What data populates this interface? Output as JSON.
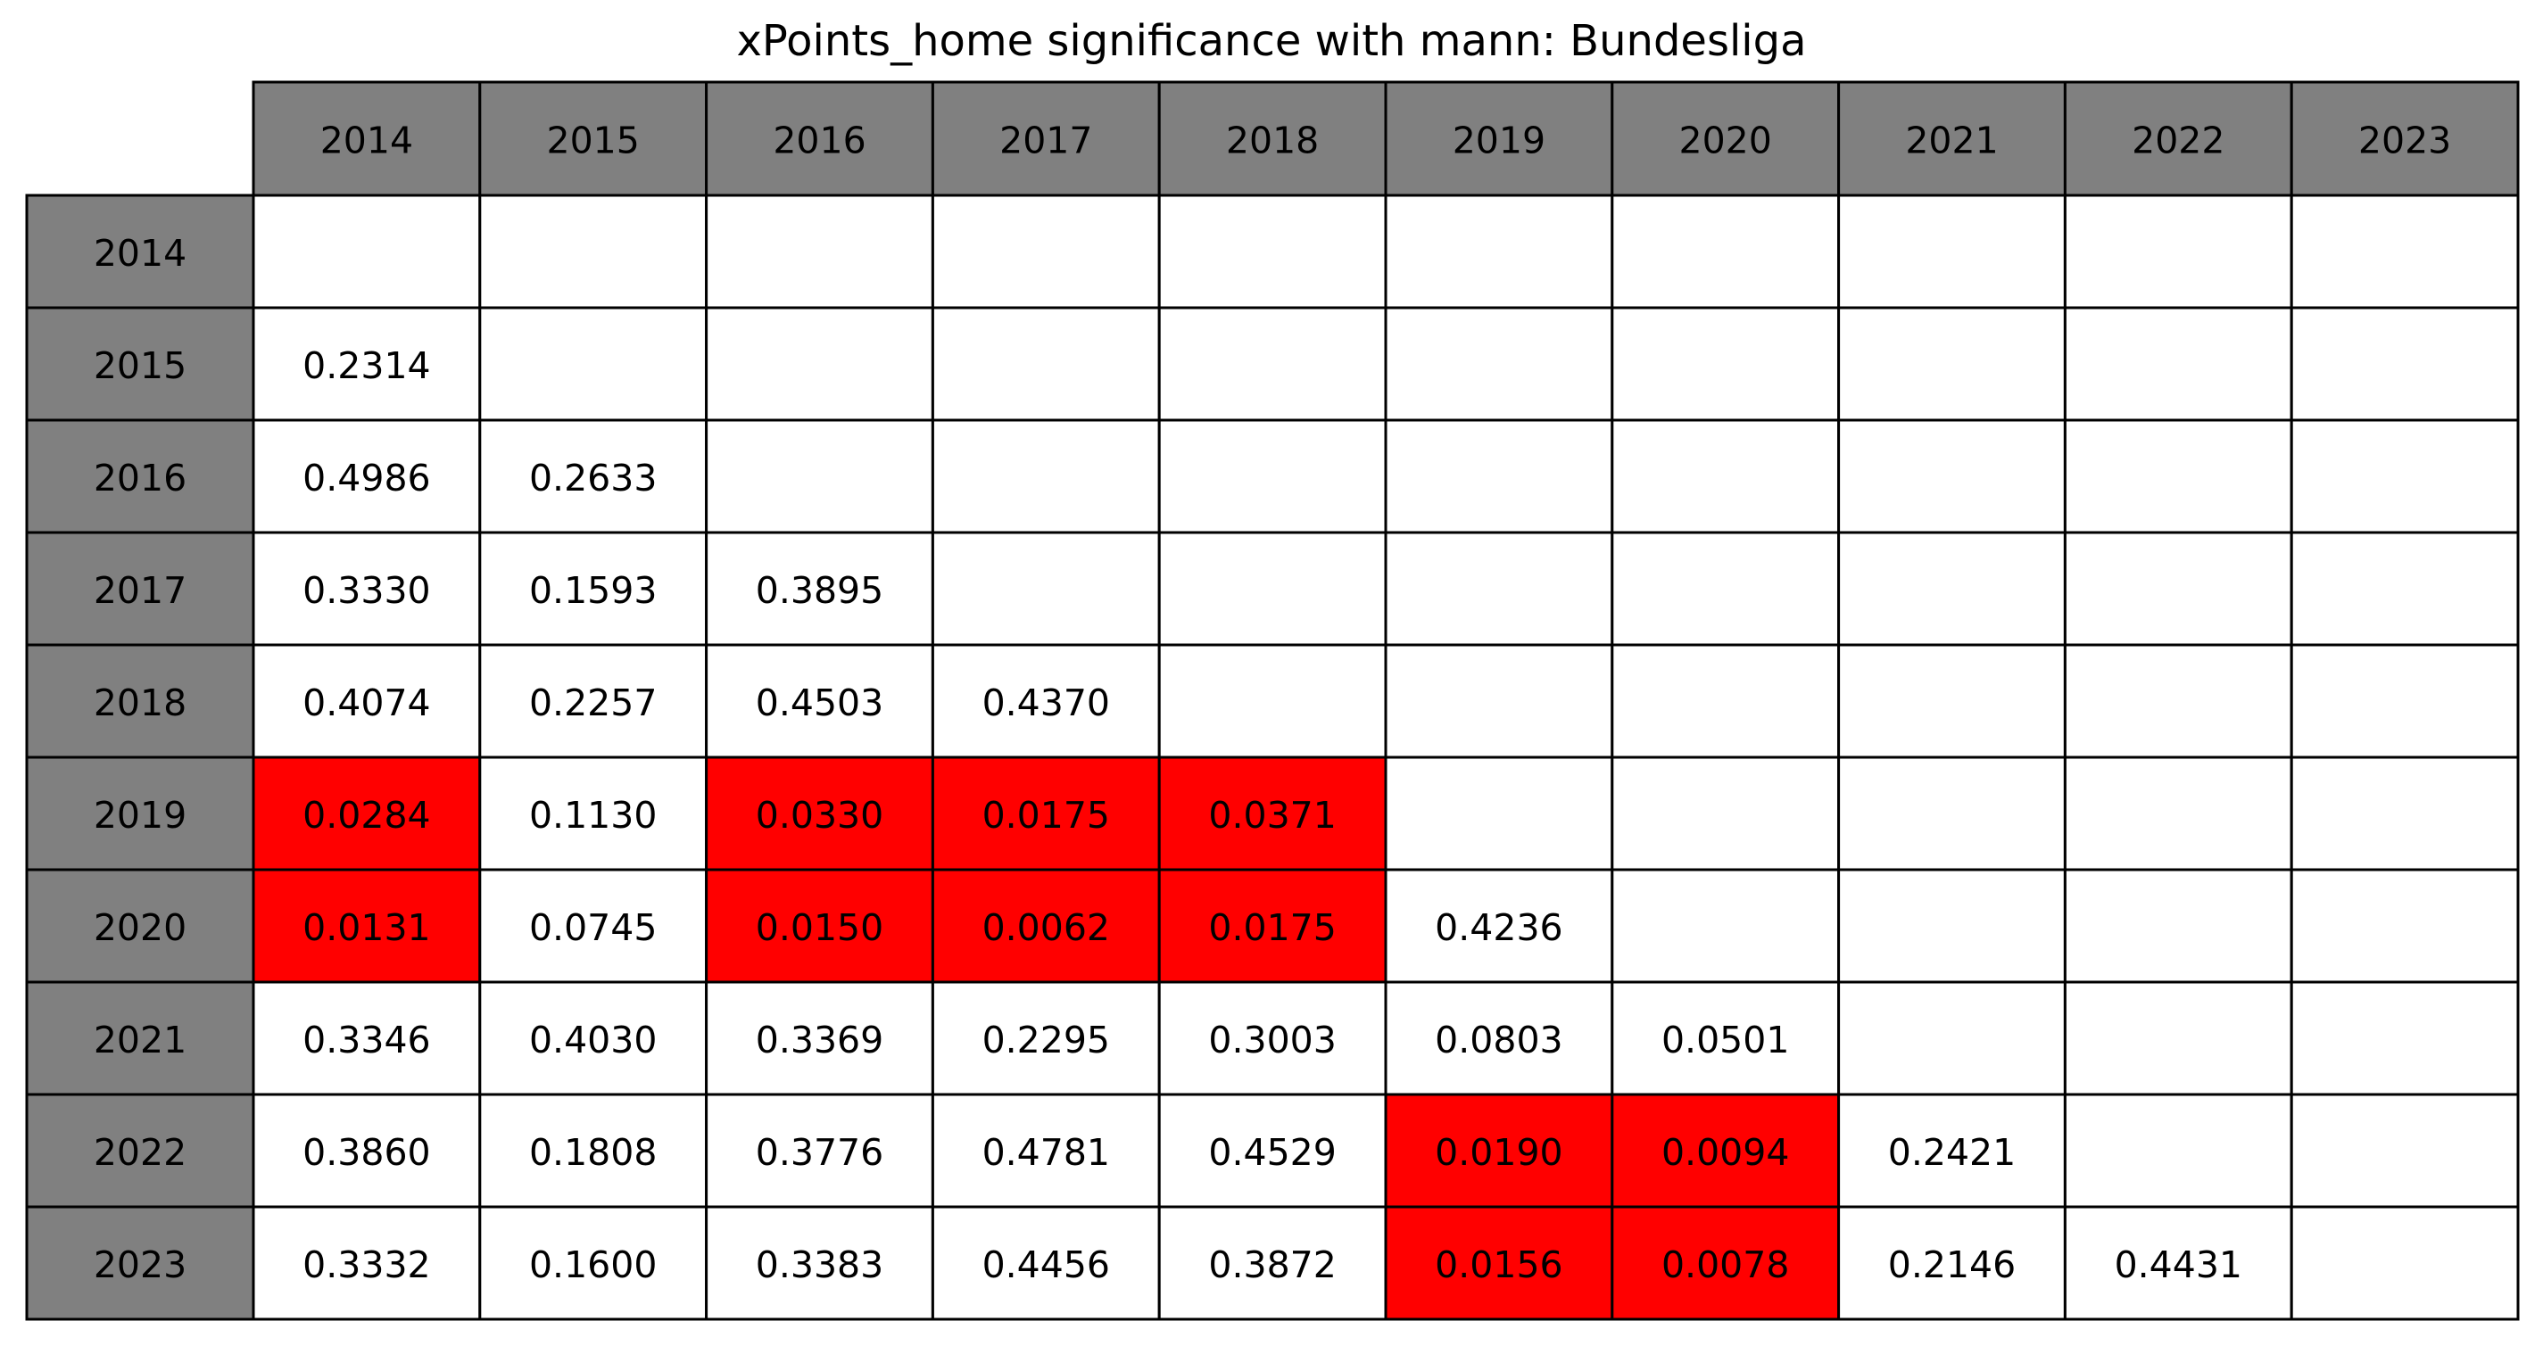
{
  "chart_data": {
    "type": "table",
    "title": "xPoints_home significance with mann: Bundesliga",
    "column_labels": [
      "2014",
      "2015",
      "2016",
      "2017",
      "2018",
      "2019",
      "2020",
      "2021",
      "2022",
      "2023"
    ],
    "row_labels": [
      "2014",
      "2015",
      "2016",
      "2017",
      "2018",
      "2019",
      "2020",
      "2021",
      "2022",
      "2023"
    ],
    "cells": [
      [
        "",
        "",
        "",
        "",
        "",
        "",
        "",
        "",
        "",
        ""
      ],
      [
        "0.2314",
        "",
        "",
        "",
        "",
        "",
        "",
        "",
        "",
        ""
      ],
      [
        "0.4986",
        "0.2633",
        "",
        "",
        "",
        "",
        "",
        "",
        "",
        ""
      ],
      [
        "0.3330",
        "0.1593",
        "0.3895",
        "",
        "",
        "",
        "",
        "",
        "",
        ""
      ],
      [
        "0.4074",
        "0.2257",
        "0.4503",
        "0.4370",
        "",
        "",
        "",
        "",
        "",
        ""
      ],
      [
        "0.0284",
        "0.1130",
        "0.0330",
        "0.0175",
        "0.0371",
        "",
        "",
        "",
        "",
        ""
      ],
      [
        "0.0131",
        "0.0745",
        "0.0150",
        "0.0062",
        "0.0175",
        "0.4236",
        "",
        "",
        "",
        ""
      ],
      [
        "0.3346",
        "0.4030",
        "0.3369",
        "0.2295",
        "0.3003",
        "0.0803",
        "0.0501",
        "",
        "",
        ""
      ],
      [
        "0.3860",
        "0.1808",
        "0.3776",
        "0.4781",
        "0.4529",
        "0.0190",
        "0.0094",
        "0.2421",
        "",
        ""
      ],
      [
        "0.3332",
        "0.1600",
        "0.3383",
        "0.4456",
        "0.3872",
        "0.0156",
        "0.0078",
        "0.2146",
        "0.4431",
        ""
      ]
    ],
    "significance_threshold": 0.05,
    "colors": {
      "header": "#808080",
      "significant": "#ff0000",
      "default": "#ffffff",
      "border": "#000000"
    }
  }
}
